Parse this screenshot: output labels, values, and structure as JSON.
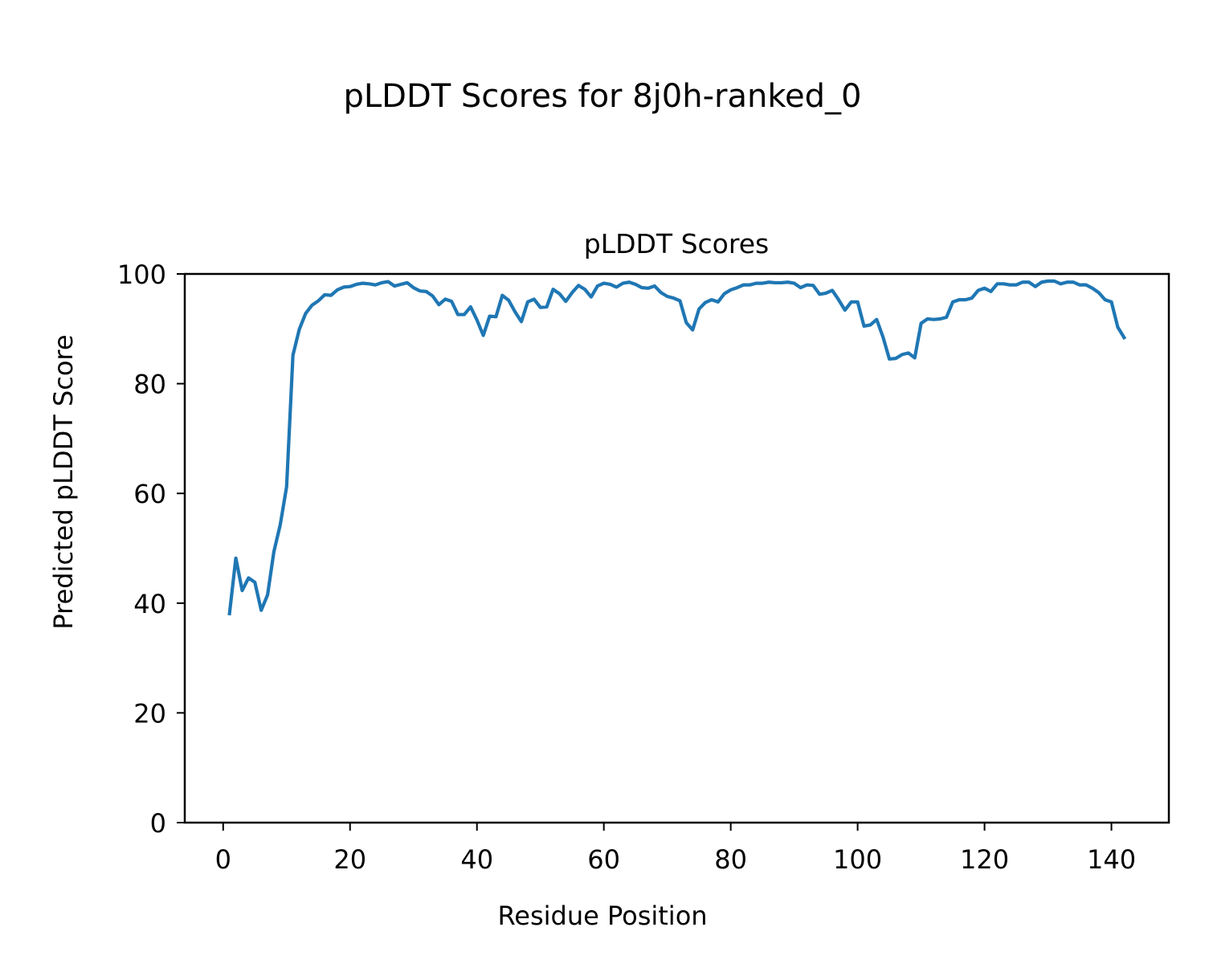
{
  "figure": {
    "suptitle": "pLDDT Scores for 8j0h-ranked_0"
  },
  "chart_data": {
    "type": "line",
    "title": "pLDDT Scores",
    "xlabel": "Residue Position",
    "ylabel": "Predicted pLDDT Score",
    "xlim": [
      -6.05,
      149.05
    ],
    "ylim": [
      0,
      100
    ],
    "xticks": [
      0,
      20,
      40,
      60,
      80,
      100,
      120,
      140
    ],
    "yticks": [
      0,
      20,
      40,
      60,
      80,
      100
    ],
    "grid": false,
    "legend": "none",
    "series": [
      {
        "color": "#1f77b4",
        "x": [
          1,
          2,
          3,
          4,
          5,
          6,
          7,
          8,
          9,
          10,
          11,
          12,
          13,
          14,
          15,
          16,
          17,
          18,
          19,
          20,
          21,
          22,
          23,
          24,
          25,
          26,
          27,
          28,
          29,
          30,
          31,
          32,
          33,
          34,
          35,
          36,
          37,
          38,
          39,
          40,
          41,
          42,
          43,
          44,
          45,
          46,
          47,
          48,
          49,
          50,
          51,
          52,
          53,
          54,
          55,
          56,
          57,
          58,
          59,
          60,
          61,
          62,
          63,
          64,
          65,
          66,
          67,
          68,
          69,
          70,
          71,
          72,
          73,
          74,
          75,
          76,
          77,
          78,
          79,
          80,
          81,
          82,
          83,
          84,
          85,
          86,
          87,
          88,
          89,
          90,
          91,
          92,
          93,
          94,
          95,
          96,
          97,
          98,
          99,
          100,
          101,
          102,
          103,
          104,
          105,
          106,
          107,
          108,
          109,
          110,
          111,
          112,
          113,
          114,
          115,
          116,
          117,
          118,
          119,
          120,
          121,
          122,
          123,
          124,
          125,
          126,
          127,
          128,
          129,
          130,
          131,
          132,
          133,
          134,
          135,
          136,
          137,
          138,
          139,
          140,
          141,
          142
        ],
        "y": [
          38.1,
          48.2,
          42.3,
          44.6,
          43.8,
          38.7,
          41.5,
          49.4,
          54.3,
          61.2,
          85.2,
          89.9,
          92.8,
          94.3,
          95.1,
          96.2,
          96.1,
          97.1,
          97.6,
          97.7,
          98.1,
          98.3,
          98.2,
          98.0,
          98.4,
          98.6,
          97.8,
          98.1,
          98.4,
          97.5,
          96.9,
          96.8,
          96.0,
          94.4,
          95.4,
          95.0,
          92.6,
          92.6,
          94.0,
          91.6,
          88.8,
          92.3,
          92.2,
          96.1,
          95.2,
          93.1,
          91.3,
          94.9,
          95.4,
          93.9,
          94.0,
          97.2,
          96.4,
          95.0,
          96.6,
          97.9,
          97.2,
          95.8,
          97.8,
          98.3,
          98.1,
          97.6,
          98.3,
          98.5,
          98.1,
          97.5,
          97.4,
          97.8,
          96.6,
          95.9,
          95.6,
          95.1,
          91.1,
          89.8,
          93.6,
          94.8,
          95.3,
          94.9,
          96.4,
          97.1,
          97.5,
          98.0,
          98.0,
          98.3,
          98.3,
          98.5,
          98.4,
          98.4,
          98.5,
          98.3,
          97.5,
          98.0,
          97.9,
          96.3,
          96.5,
          97.0,
          95.3,
          93.4,
          94.9,
          94.9,
          90.5,
          90.7,
          91.7,
          88.5,
          84.5,
          84.6,
          85.3,
          85.6,
          84.7,
          91.0,
          91.8,
          91.7,
          91.8,
          92.1,
          94.9,
          95.3,
          95.3,
          95.6,
          97.0,
          97.4,
          96.8,
          98.2,
          98.2,
          98.0,
          98.0,
          98.5,
          98.5,
          97.7,
          98.5,
          98.7,
          98.7,
          98.2,
          98.5,
          98.5,
          98.0,
          98.0,
          97.4,
          96.6,
          95.3,
          94.9,
          90.3,
          88.4
        ]
      }
    ]
  }
}
